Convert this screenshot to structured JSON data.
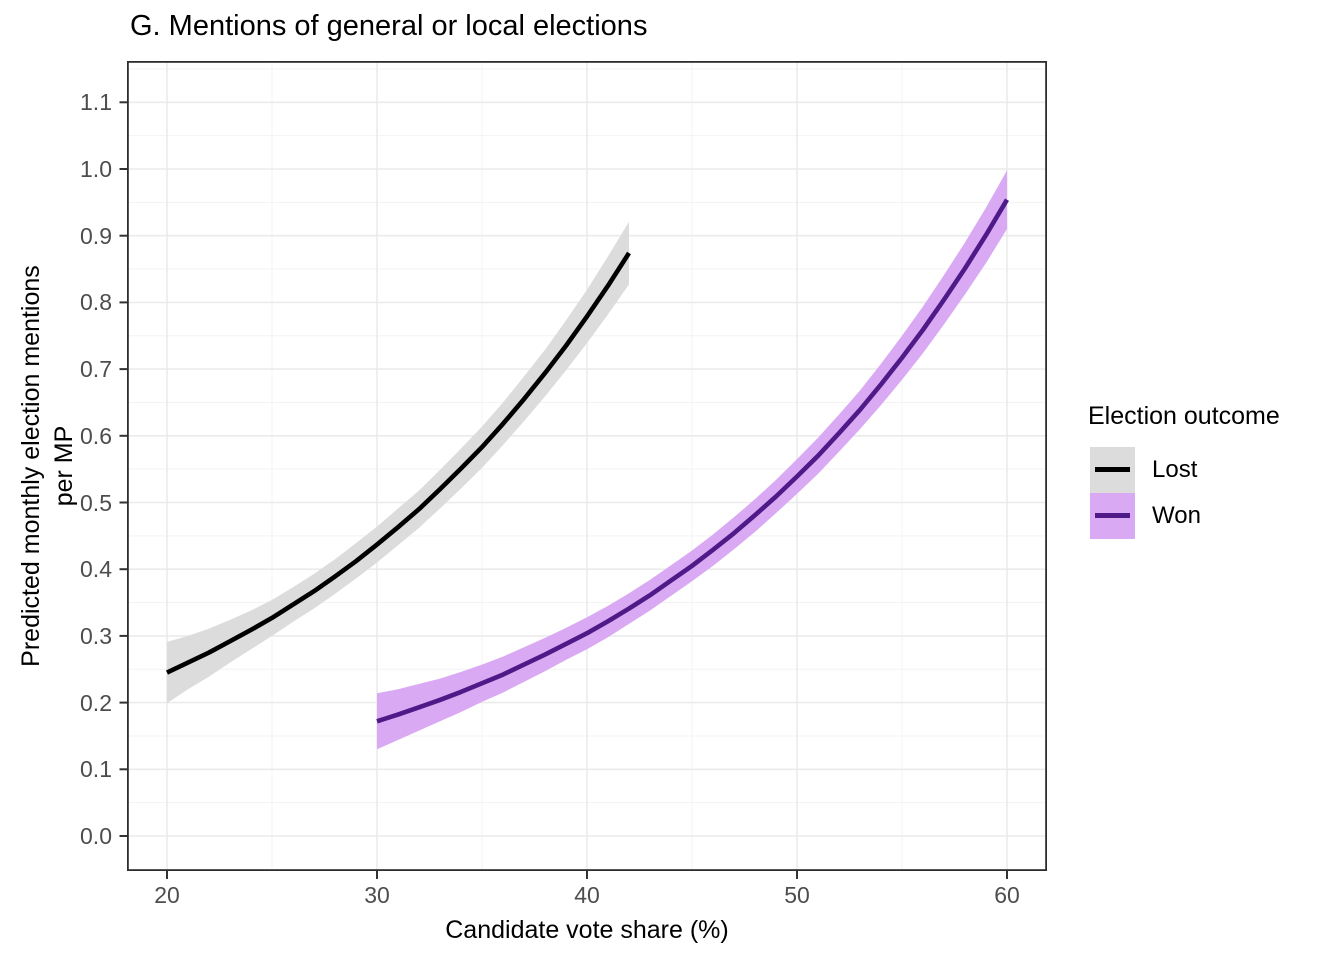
{
  "title": "G. Mentions of general or local elections",
  "chart_data": {
    "type": "line",
    "title": "G. Mentions of general or local elections",
    "xlabel": "Candidate vote share (%)",
    "ylabel": "Predicted monthly election mentions per MP",
    "ylabel_lines": [
      "Predicted monthly election mentions",
      "per MP"
    ],
    "xlim": [
      18.1,
      61.9
    ],
    "ylim": [
      -0.05,
      1.16
    ],
    "xticks": [
      20,
      30,
      40,
      50,
      60
    ],
    "yticks": [
      0.0,
      0.1,
      0.2,
      0.3,
      0.4,
      0.5,
      0.6,
      0.7,
      0.8,
      0.9,
      1.0,
      1.1
    ],
    "xticks_minor": [
      25,
      35,
      45,
      55
    ],
    "yticks_minor": [
      0.05,
      0.15,
      0.25,
      0.35,
      0.45,
      0.55,
      0.65,
      0.75,
      0.85,
      0.95,
      1.05,
      1.15
    ],
    "grid": "major+minor",
    "panel_border_color": "#2D2D2D",
    "grid_major_color": "#EBEBEB",
    "grid_minor_color": "#F3F3F3",
    "tick_mark_color": "#333333",
    "tick_label_color": "#4D4D4D",
    "legend": {
      "title": "Election outcome",
      "position": "right"
    },
    "series": [
      {
        "name": "Lost",
        "line_color": "#000000",
        "ribbon_color": "#DCDCDC",
        "x": [
          20,
          21,
          22,
          23,
          24,
          25,
          26,
          27,
          28,
          29,
          30,
          31,
          32,
          33,
          34,
          35,
          36,
          37,
          38,
          39,
          40,
          41,
          42
        ],
        "y": [
          0.245,
          0.26,
          0.275,
          0.292,
          0.309,
          0.327,
          0.347,
          0.367,
          0.389,
          0.412,
          0.437,
          0.463,
          0.49,
          0.52,
          0.551,
          0.583,
          0.618,
          0.655,
          0.694,
          0.735,
          0.779,
          0.825,
          0.874
        ],
        "lower": [
          0.199,
          0.22,
          0.239,
          0.26,
          0.28,
          0.3,
          0.321,
          0.341,
          0.363,
          0.386,
          0.41,
          0.436,
          0.462,
          0.491,
          0.521,
          0.552,
          0.586,
          0.622,
          0.659,
          0.698,
          0.739,
          0.782,
          0.827
        ],
        "upper": [
          0.291,
          0.3,
          0.311,
          0.324,
          0.338,
          0.354,
          0.373,
          0.393,
          0.415,
          0.439,
          0.464,
          0.491,
          0.518,
          0.549,
          0.581,
          0.614,
          0.65,
          0.689,
          0.729,
          0.773,
          0.819,
          0.869,
          0.921
        ]
      },
      {
        "name": "Won",
        "line_color": "#4E1A87",
        "ribbon_color": "#D9A9F3",
        "x": [
          30,
          31,
          32,
          33,
          34,
          35,
          36,
          37,
          38,
          39,
          40,
          41,
          42,
          43,
          44,
          45,
          46,
          47,
          48,
          49,
          50,
          51,
          52,
          53,
          54,
          55,
          56,
          57,
          58,
          59,
          60
        ],
        "y": [
          0.172,
          0.182,
          0.193,
          0.204,
          0.216,
          0.229,
          0.242,
          0.257,
          0.272,
          0.288,
          0.304,
          0.322,
          0.341,
          0.361,
          0.383,
          0.405,
          0.429,
          0.454,
          0.481,
          0.509,
          0.539,
          0.57,
          0.604,
          0.639,
          0.677,
          0.717,
          0.759,
          0.804,
          0.851,
          0.901,
          0.954
        ],
        "lower": [
          0.13,
          0.144,
          0.158,
          0.172,
          0.186,
          0.201,
          0.215,
          0.231,
          0.247,
          0.264,
          0.28,
          0.298,
          0.318,
          0.338,
          0.36,
          0.382,
          0.405,
          0.43,
          0.456,
          0.484,
          0.513,
          0.543,
          0.576,
          0.61,
          0.646,
          0.684,
          0.724,
          0.767,
          0.812,
          0.859,
          0.91
        ],
        "upper": [
          0.214,
          0.22,
          0.228,
          0.236,
          0.246,
          0.257,
          0.269,
          0.283,
          0.297,
          0.312,
          0.328,
          0.345,
          0.364,
          0.384,
          0.406,
          0.428,
          0.452,
          0.478,
          0.505,
          0.534,
          0.565,
          0.597,
          0.632,
          0.668,
          0.708,
          0.75,
          0.794,
          0.841,
          0.89,
          0.942,
          0.998
        ]
      }
    ]
  }
}
